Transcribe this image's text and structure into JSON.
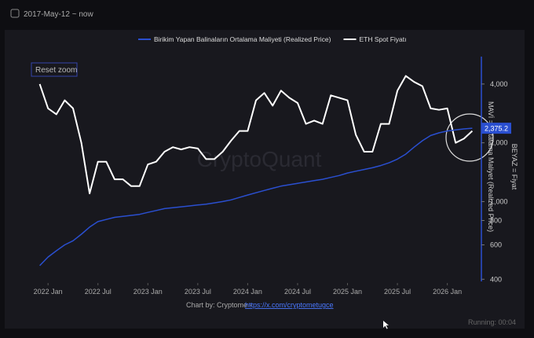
{
  "ui": {
    "date_range": "2017-May-12 ~ now",
    "reset_zoom": "Reset zoom",
    "status": "Running: 00:04"
  },
  "chart_data": {
    "type": "line",
    "watermark": "CryptoQuant",
    "y_axis_label": "MAVİ = Ortalama Maliyet (Realized Price)",
    "y_axis_label_2": "BEYAZ = Fiyat",
    "credit": "Chart by: Cryptome - ",
    "credit_link": "https://x.com/cryptometugce",
    "log_scale": true,
    "legend": "top",
    "xlim": [
      "2021-11",
      "2026-05"
    ],
    "xticks": [
      {
        "value": "2022-01",
        "label": "2022 Jan"
      },
      {
        "value": "2022-07",
        "label": "2022 Jul"
      },
      {
        "value": "2023-01",
        "label": "2023 Jan"
      },
      {
        "value": "2023-07",
        "label": "2023 Jul"
      },
      {
        "value": "2024-01",
        "label": "2024 Jan"
      },
      {
        "value": "2024-07",
        "label": "2024 Jul"
      },
      {
        "value": "2025-01",
        "label": "2025 Jan"
      },
      {
        "value": "2025-07",
        "label": "2025 Jul"
      },
      {
        "value": "2026-01",
        "label": "2026 Jan"
      }
    ],
    "ylim": [
      390,
      4900
    ],
    "yticks": [
      400,
      600,
      800,
      {
        "value": 1000,
        "label": "1,000"
      },
      {
        "value": 2000,
        "label": "2,000"
      },
      {
        "value": 4000,
        "label": "4,000"
      }
    ],
    "current_value": {
      "value": 2375.2,
      "label": "2,375.2"
    },
    "x": [
      "2021-12",
      "2022-01",
      "2022-02",
      "2022-03",
      "2022-04",
      "2022-05",
      "2022-06",
      "2022-07",
      "2022-08",
      "2022-09",
      "2022-10",
      "2022-11",
      "2022-12",
      "2023-01",
      "2023-02",
      "2023-03",
      "2023-04",
      "2023-05",
      "2023-06",
      "2023-07",
      "2023-08",
      "2023-09",
      "2023-10",
      "2023-11",
      "2023-12",
      "2024-01",
      "2024-02",
      "2024-03",
      "2024-04",
      "2024-05",
      "2024-06",
      "2024-07",
      "2024-08",
      "2024-09",
      "2024-10",
      "2024-11",
      "2024-12",
      "2025-01",
      "2025-02",
      "2025-03",
      "2025-04",
      "2025-05",
      "2025-06",
      "2025-07",
      "2025-08",
      "2025-09",
      "2025-10",
      "2025-11",
      "2025-12",
      "2026-01",
      "2026-02",
      "2026-03",
      "2026-04"
    ],
    "series": [
      {
        "name": "Birikim Yapan Balinaların Ortalama Maliyeti (Realized Price)",
        "color": "#2a4fd0",
        "values": [
          470,
          520,
          560,
          600,
          630,
          680,
          740,
          790,
          810,
          830,
          840,
          850,
          860,
          880,
          900,
          920,
          930,
          940,
          950,
          960,
          970,
          985,
          1000,
          1020,
          1050,
          1080,
          1110,
          1140,
          1170,
          1200,
          1220,
          1240,
          1260,
          1280,
          1300,
          1330,
          1360,
          1400,
          1430,
          1460,
          1490,
          1530,
          1580,
          1650,
          1750,
          1900,
          2050,
          2180,
          2250,
          2300,
          2330,
          2355,
          2375.2
        ]
      },
      {
        "name": "ETH Spot Fiyatı",
        "color": "#ffffff",
        "values": [
          4000,
          3000,
          2800,
          3300,
          3000,
          2000,
          1100,
          1600,
          1600,
          1300,
          1300,
          1200,
          1200,
          1550,
          1600,
          1800,
          1900,
          1850,
          1900,
          1870,
          1650,
          1650,
          1800,
          2050,
          2300,
          2300,
          3300,
          3600,
          3100,
          3700,
          3400,
          3200,
          2500,
          2600,
          2500,
          3500,
          3400,
          3300,
          2200,
          1800,
          1800,
          2500,
          2500,
          3700,
          4400,
          4100,
          3900,
          3000,
          2950,
          3000,
          2000,
          2100,
          2300
        ]
      }
    ]
  }
}
